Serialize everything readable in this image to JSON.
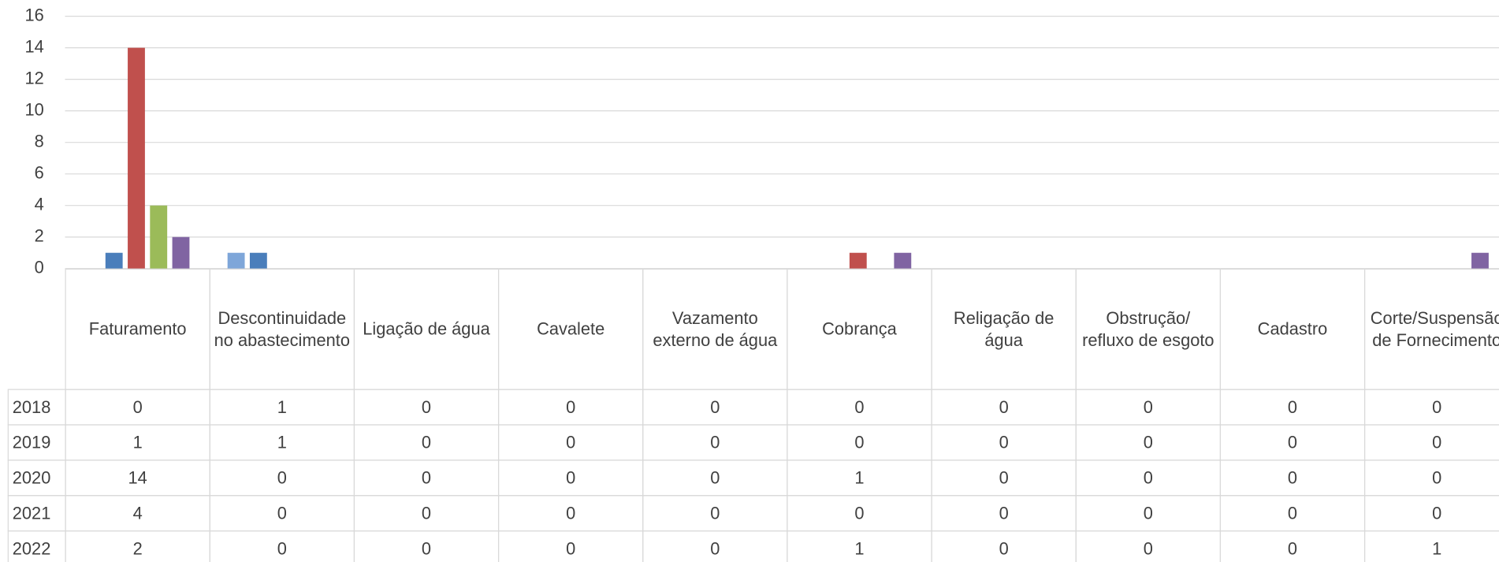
{
  "chart_data": {
    "type": "bar",
    "categories": [
      "Faturamento",
      "Descontinuidade no abastecimento",
      "Ligação de água",
      "Cavalete",
      "Vazamento externo de água",
      "Cobrança",
      "Religação de água",
      "Obstrução/ refluxo de esgoto",
      "Cadastro",
      "Corte/Suspensão de Fornecimento"
    ],
    "series": [
      {
        "name": "2018",
        "color": "#7ea6d9",
        "values": [
          0,
          1,
          0,
          0,
          0,
          0,
          0,
          0,
          0,
          0
        ]
      },
      {
        "name": "2019",
        "color": "#4a7ebb",
        "values": [
          1,
          1,
          0,
          0,
          0,
          0,
          0,
          0,
          0,
          0
        ]
      },
      {
        "name": "2020",
        "color": "#c0504d",
        "values": [
          14,
          0,
          0,
          0,
          0,
          1,
          0,
          0,
          0,
          0
        ]
      },
      {
        "name": "2021",
        "color": "#9bbb59",
        "values": [
          4,
          0,
          0,
          0,
          0,
          0,
          0,
          0,
          0,
          0
        ]
      },
      {
        "name": "2022",
        "color": "#8064a2",
        "values": [
          2,
          0,
          0,
          0,
          0,
          1,
          0,
          0,
          0,
          1
        ]
      }
    ],
    "ylim": [
      0,
      16
    ],
    "yticks": [
      0,
      2,
      4,
      6,
      8,
      10,
      12,
      14,
      16
    ],
    "grid": true,
    "data_table": true
  }
}
